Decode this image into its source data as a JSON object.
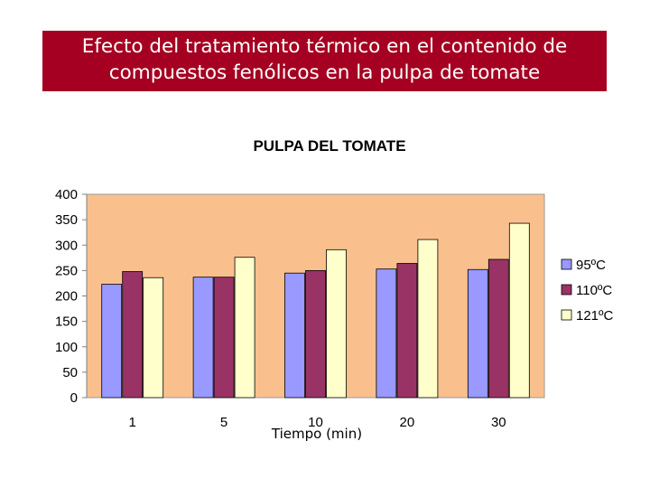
{
  "slide": {
    "title_line1": "Efecto del tratamiento térmico en el contenido de",
    "title_line2": "compuestos fenólicos en la pulpa de tomate",
    "banner_color": "#a50021"
  },
  "chart_data": {
    "type": "bar",
    "title": "PULPA DEL TOMATE",
    "xlabel": "Tiempo (min)",
    "ylabel": "",
    "categories": [
      "1",
      "5",
      "10",
      "20",
      "30"
    ],
    "series": [
      {
        "name": "95ºC",
        "values": [
          223,
          237,
          245,
          253,
          252
        ],
        "color": "#9999ff"
      },
      {
        "name": "110ºC",
        "values": [
          248,
          237,
          250,
          264,
          272
        ],
        "color": "#993366"
      },
      {
        "name": "121ºC",
        "values": [
          236,
          276,
          291,
          311,
          343
        ],
        "color": "#ffffcc"
      }
    ],
    "ylim": [
      0,
      400
    ],
    "yticks": [
      "0",
      "50",
      "100",
      "150",
      "200",
      "250",
      "300",
      "350",
      "400"
    ],
    "plot_background": "#f9c08e",
    "grid": false,
    "legend": "right"
  }
}
